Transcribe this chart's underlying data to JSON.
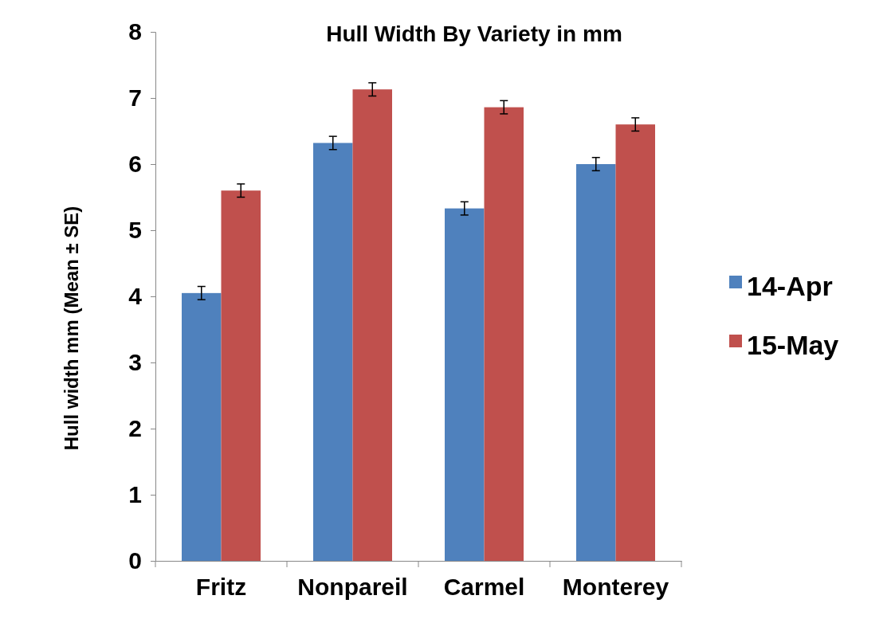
{
  "chart_data": {
    "type": "bar",
    "title": "Hull Width By Variety in mm",
    "ylabel": "Hull width mm (Mean ± SE)",
    "categories": [
      "Fritz",
      "Nonpareil",
      "Carmel",
      "Monterey"
    ],
    "series": [
      {
        "name": "14-Apr",
        "color": "#4f81bd",
        "values": [
          4.05,
          6.32,
          5.33,
          6.0
        ],
        "errors": [
          0.1,
          0.1,
          0.1,
          0.1
        ]
      },
      {
        "name": "15-May",
        "color": "#c0504d",
        "values": [
          5.6,
          7.13,
          6.86,
          6.6
        ],
        "errors": [
          0.1,
          0.1,
          0.1,
          0.1
        ]
      }
    ],
    "ylim": [
      0,
      8
    ],
    "yticks": [
      0,
      1,
      2,
      3,
      4,
      5,
      6,
      7,
      8
    ],
    "legend": "right"
  }
}
